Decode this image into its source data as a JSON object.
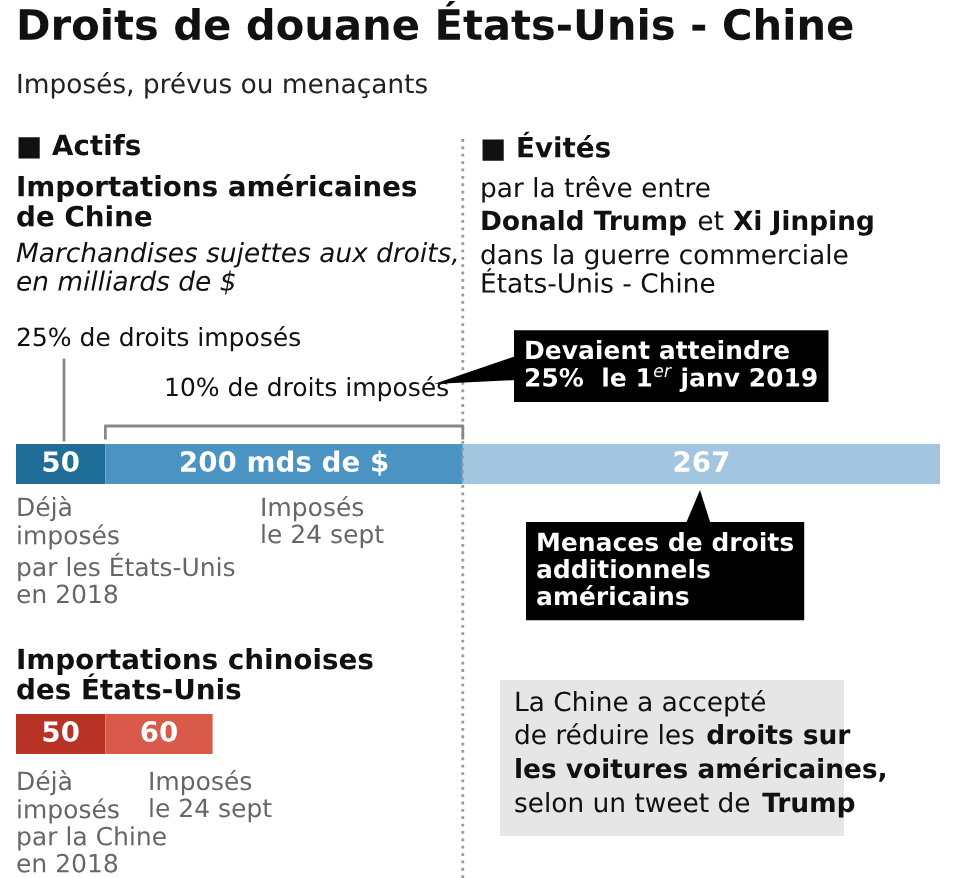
{
  "chart_data": {
    "type": "bar",
    "orientation": "horizontal",
    "stacked": true,
    "title": "Droits de douane États-Unis - Chine",
    "subtitle": "Imposés, prévus ou menaçants",
    "categories": [
      null,
      null
    ],
    "series": [
      {
        "colors": [
          "#1f6e99",
          "#b83226"
        ],
        "values": [
          50,
          50
        ],
        "value_labels": [
          "50",
          "50"
        ]
      },
      {
        "colors": [
          "#4a93c2",
          "#d9594a"
        ],
        "values": [
          200,
          60
        ],
        "value_labels": [
          "200 mds de $",
          "60"
        ]
      },
      {
        "colors": [
          "#a3c6e0",
          null
        ],
        "values": [
          267,
          null
        ],
        "value_labels": [
          "267",
          null
        ]
      }
    ],
    "ref_lines": [
      {
        "axis": "x",
        "value": 250,
        "line_style": "dotted",
        "color": "#999999"
      }
    ],
    "annotations": [
      "■ Actifs",
      "Importations américaines\nde Chine",
      "Marchandises sujettes aux droits,\nen milliards de $",
      "25% de droits imposés",
      "10% de droits imposés",
      "Devaient atteindre\n25%  le 1$^{er}$ janv 2019",
      "■ Évités",
      "par la trêve entre",
      "Donald Trump",
      " et ",
      "Xi Jinping",
      "dans la guerre commerciale\nÉtats-Unis - Chine",
      "Déjà\nimposés\npar les États-Unis\nen 2018",
      "Imposés\nle 24 sept",
      "Menaces de droits\nadditionnels\naméricains",
      "Importations chinoises\ndes États-Unis",
      "Déjà\nimposés\npar la Chine\nen 2018",
      "Imposés\nle 24 sept",
      "La Chine a accepté",
      "de réduire les ",
      "droits sur",
      "les voitures américaines,",
      "selon un tweet de ",
      "Trump"
    ]
  }
}
